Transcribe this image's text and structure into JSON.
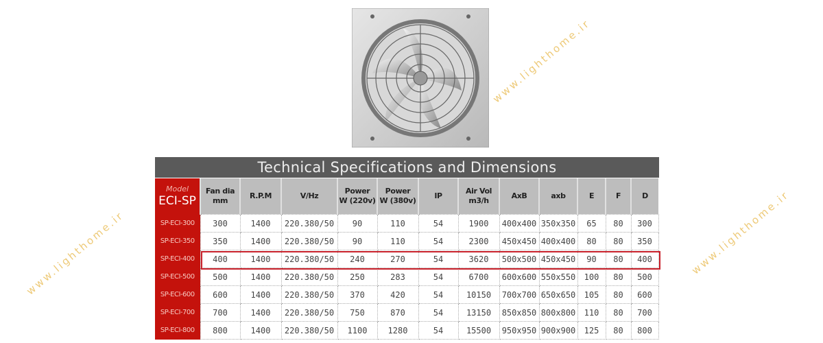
{
  "title": "Technical Specifications and Dimensions",
  "watermark": "www.lighthome.ir",
  "model_header": {
    "label": "Model",
    "value": "ECI-SP"
  },
  "columns_display": [
    [
      "Fan dia",
      "mm"
    ],
    [
      "R.P.M",
      ""
    ],
    [
      "V/Hz",
      ""
    ],
    [
      "Power",
      "W (220v)"
    ],
    [
      "Power",
      "W (380v)"
    ],
    [
      "IP",
      ""
    ],
    [
      "Air Vol",
      "m3/h"
    ],
    [
      "AxB",
      ""
    ],
    [
      "axb",
      ""
    ],
    [
      "E",
      ""
    ],
    [
      "F",
      ""
    ],
    [
      "D",
      ""
    ]
  ],
  "rows": [
    {
      "model": "SP-ECI-300",
      "cells": [
        "300",
        "1400",
        "220.380/50",
        "90",
        "110",
        "54",
        "1900",
        "400x400",
        "350x350",
        "65",
        "80",
        "300"
      ]
    },
    {
      "model": "SP-ECI-350",
      "cells": [
        "350",
        "1400",
        "220.380/50",
        "90",
        "110",
        "54",
        "2300",
        "450x450",
        "400x400",
        "80",
        "80",
        "350"
      ]
    },
    {
      "model": "SP-ECI-400",
      "cells": [
        "400",
        "1400",
        "220.380/50",
        "240",
        "270",
        "54",
        "3620",
        "500x500",
        "450x450",
        "90",
        "80",
        "400"
      ],
      "highlighted": true
    },
    {
      "model": "SP-ECI-500",
      "cells": [
        "500",
        "1400",
        "220.380/50",
        "250",
        "283",
        "54",
        "6700",
        "600x600",
        "550x550",
        "100",
        "80",
        "500"
      ]
    },
    {
      "model": "SP-ECI-600",
      "cells": [
        "600",
        "1400",
        "220.380/50",
        "370",
        "420",
        "54",
        "10150",
        "700x700",
        "650x650",
        "105",
        "80",
        "600"
      ]
    },
    {
      "model": "SP-ECI-700",
      "cells": [
        "700",
        "1400",
        "220.380/50",
        "750",
        "870",
        "54",
        "13150",
        "850x850",
        "800x800",
        "110",
        "80",
        "700"
      ]
    },
    {
      "model": "SP-ECI-800",
      "cells": [
        "800",
        "1400",
        "220.380/50",
        "1100",
        "1280",
        "54",
        "15500",
        "950x950",
        "900x900",
        "125",
        "80",
        "800"
      ]
    }
  ],
  "colors": {
    "header_bar": "#5a5a5a",
    "model_red": "#c4120c",
    "highlight": "#c8202a",
    "watermark": "#e8b84a"
  }
}
